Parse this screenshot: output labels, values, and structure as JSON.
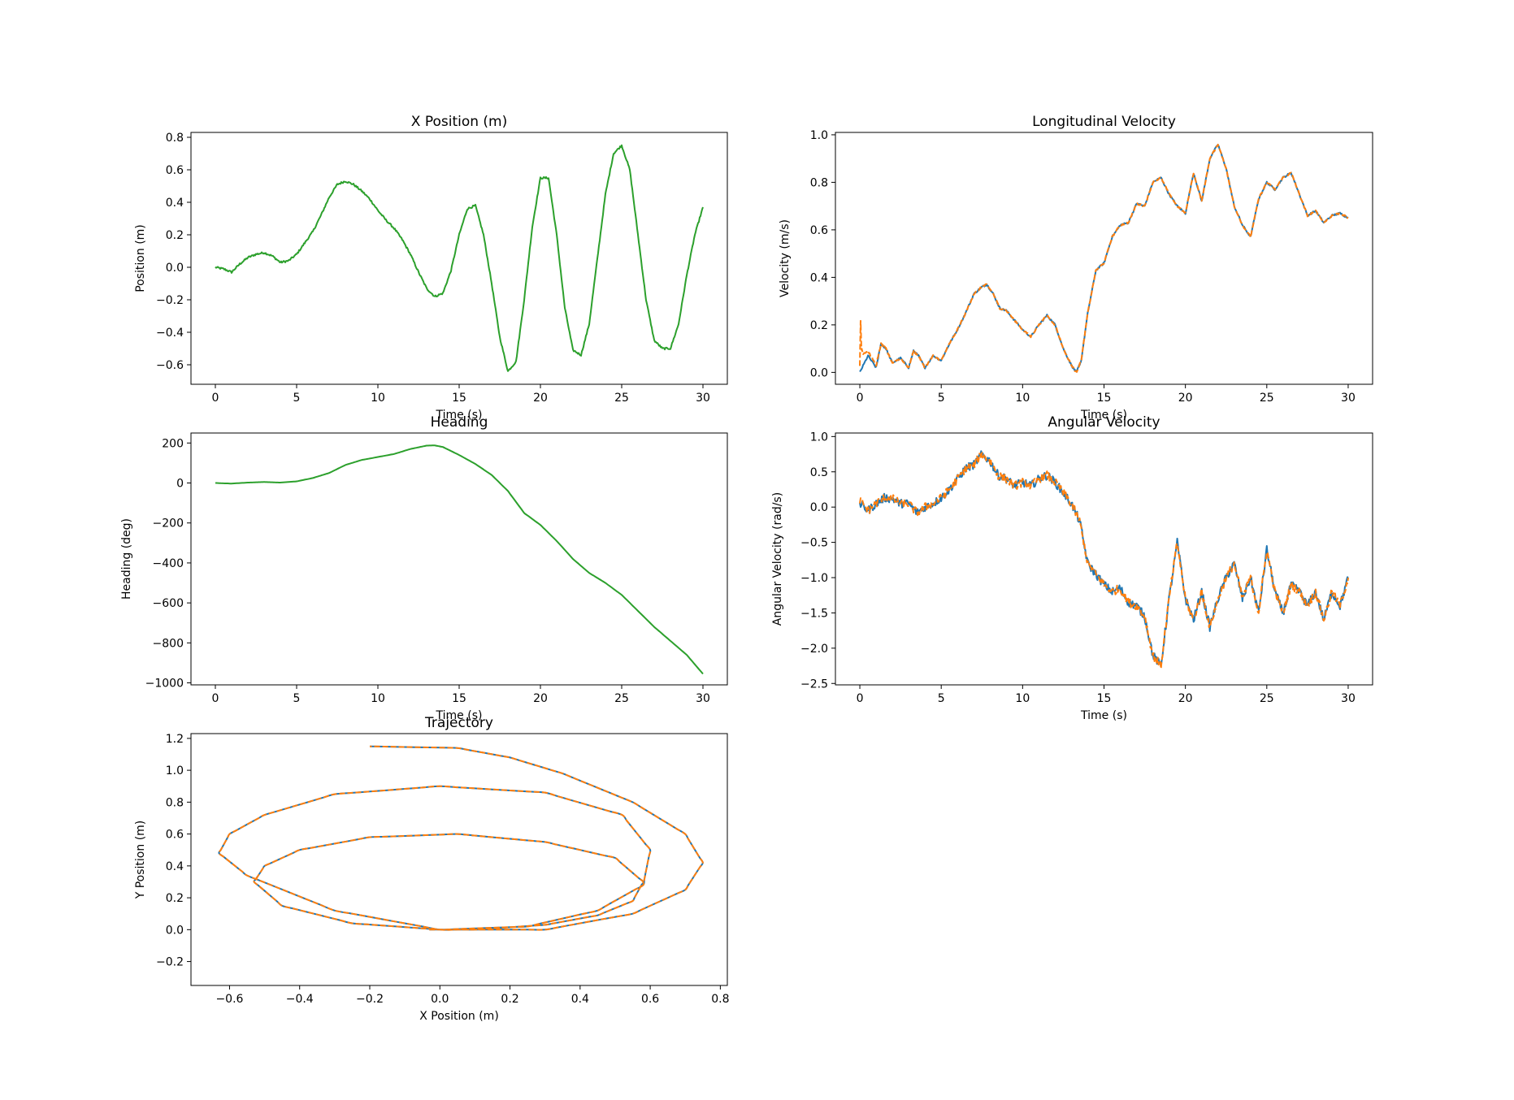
{
  "colors": {
    "blue": "#1f77b4",
    "orange": "#ff7f0e",
    "green": "#2ca02c"
  },
  "chart_data": [
    {
      "id": "xpos",
      "type": "line",
      "title": "X Position (m)",
      "xlabel": "Time (s)",
      "ylabel": "Position (m)",
      "xlim": [
        -1.5,
        31.5
      ],
      "ylim": [
        -0.72,
        0.83
      ],
      "xticks": [
        0,
        5,
        10,
        15,
        20,
        25,
        30
      ],
      "yticks": [
        -0.6,
        -0.4,
        -0.2,
        0.0,
        0.2,
        0.4,
        0.6,
        0.8
      ],
      "ytick_labels": [
        "−0.6",
        "−0.4",
        "−0.2",
        "0.0",
        "0.2",
        "0.4",
        "0.6",
        "0.8"
      ],
      "grid": false,
      "series": [
        {
          "color": "green",
          "dash": false,
          "noise": 0.006,
          "x": [
            0,
            0.5,
            1,
            1.5,
            2,
            2.5,
            3,
            3.5,
            4,
            4.5,
            5,
            5.5,
            6,
            6.5,
            7,
            7.5,
            8,
            8.5,
            9,
            9.5,
            10,
            10.5,
            11,
            11.5,
            12,
            12.5,
            13,
            13.5,
            14,
            14.5,
            15,
            15.5,
            16,
            16.5,
            17,
            17.5,
            18,
            18.5,
            19,
            19.5,
            20,
            20.5,
            21,
            21.5,
            22,
            22.5,
            23,
            23.5,
            24,
            24.5,
            25,
            25.5,
            26,
            26.5,
            27,
            27.5,
            28,
            28.5,
            29,
            29.5,
            30
          ],
          "y": [
            0,
            -0.01,
            -0.03,
            0.02,
            0.06,
            0.08,
            0.09,
            0.07,
            0.03,
            0.04,
            0.08,
            0.15,
            0.22,
            0.32,
            0.43,
            0.51,
            0.53,
            0.51,
            0.47,
            0.42,
            0.35,
            0.29,
            0.24,
            0.17,
            0.08,
            -0.03,
            -0.13,
            -0.18,
            -0.16,
            -0.02,
            0.2,
            0.36,
            0.38,
            0.2,
            -0.1,
            -0.43,
            -0.64,
            -0.58,
            -0.2,
            0.25,
            0.55,
            0.55,
            0.2,
            -0.25,
            -0.51,
            -0.54,
            -0.35,
            0.05,
            0.45,
            0.7,
            0.75,
            0.6,
            0.2,
            -0.2,
            -0.45,
            -0.5,
            -0.5,
            -0.35,
            -0.05,
            0.2,
            0.37
          ]
        }
      ]
    },
    {
      "id": "longvel",
      "type": "line",
      "title": "Longitudinal Velocity",
      "xlabel": "Time (s)",
      "ylabel": "Velocity (m/s)",
      "xlim": [
        -1.5,
        31.5
      ],
      "ylim": [
        -0.05,
        1.01
      ],
      "xticks": [
        0,
        5,
        10,
        15,
        20,
        25,
        30
      ],
      "yticks": [
        0.0,
        0.2,
        0.4,
        0.6,
        0.8,
        1.0
      ],
      "ytick_labels": [
        "0.0",
        "0.2",
        "0.4",
        "0.6",
        "0.8",
        "1.0"
      ],
      "grid": false,
      "series": [
        {
          "color": "blue",
          "dash": false,
          "noise": 0.004,
          "x": [
            0,
            0.5,
            1,
            1.3,
            1.6,
            2,
            2.5,
            3,
            3.3,
            3.6,
            4,
            4.5,
            5,
            5.5,
            6,
            6.5,
            7,
            7.5,
            7.8,
            8.2,
            8.6,
            9,
            9.5,
            10,
            10.5,
            11,
            11.5,
            12,
            12.5,
            13,
            13.3,
            13.6,
            14,
            14.5,
            15,
            15.5,
            16,
            16.5,
            17,
            17.5,
            18,
            18.5,
            19,
            19.5,
            20,
            20.5,
            21,
            21.5,
            22,
            22.5,
            23,
            23.5,
            24,
            24.5,
            25,
            25.5,
            26,
            26.5,
            27,
            27.5,
            28,
            28.5,
            29,
            29.5,
            30
          ],
          "y": [
            0,
            0.07,
            0.02,
            0.12,
            0.1,
            0.04,
            0.06,
            0.02,
            0.09,
            0.07,
            0.02,
            0.07,
            0.05,
            0.12,
            0.18,
            0.25,
            0.33,
            0.36,
            0.37,
            0.33,
            0.27,
            0.26,
            0.22,
            0.18,
            0.15,
            0.2,
            0.24,
            0.2,
            0.1,
            0.03,
            0,
            0.05,
            0.25,
            0.43,
            0.46,
            0.57,
            0.62,
            0.63,
            0.71,
            0.7,
            0.8,
            0.82,
            0.75,
            0.7,
            0.67,
            0.84,
            0.72,
            0.9,
            0.96,
            0.86,
            0.7,
            0.62,
            0.57,
            0.73,
            0.8,
            0.77,
            0.82,
            0.84,
            0.75,
            0.66,
            0.68,
            0.63,
            0.66,
            0.67,
            0.65
          ]
        },
        {
          "color": "orange",
          "dash": true,
          "noise": 0.004,
          "x": [
            0,
            0.05,
            0.1,
            0.2,
            0.5,
            1,
            1.3,
            1.6,
            2,
            2.5,
            3,
            3.3,
            3.6,
            4,
            4.5,
            5,
            5.5,
            6,
            6.5,
            7,
            7.5,
            7.8,
            8.2,
            8.6,
            9,
            9.5,
            10,
            10.5,
            11,
            11.5,
            12,
            12.5,
            13,
            13.3,
            13.6,
            14,
            14.5,
            15,
            15.5,
            16,
            16.5,
            17,
            17.5,
            18,
            18.5,
            19,
            19.5,
            20,
            20.5,
            21,
            21.5,
            22,
            22.5,
            23,
            23.5,
            24,
            24.5,
            25,
            25.5,
            26,
            26.5,
            27,
            27.5,
            28,
            28.5,
            29,
            29.5,
            30
          ],
          "y": [
            0.03,
            0.22,
            0.1,
            0.08,
            0.09,
            0.03,
            0.12,
            0.1,
            0.04,
            0.06,
            0.02,
            0.09,
            0.07,
            0.02,
            0.07,
            0.05,
            0.12,
            0.18,
            0.25,
            0.33,
            0.36,
            0.37,
            0.33,
            0.27,
            0.26,
            0.22,
            0.18,
            0.15,
            0.2,
            0.24,
            0.2,
            0.1,
            0.03,
            0,
            0.05,
            0.25,
            0.43,
            0.46,
            0.57,
            0.62,
            0.63,
            0.71,
            0.7,
            0.8,
            0.82,
            0.75,
            0.7,
            0.67,
            0.84,
            0.72,
            0.9,
            0.96,
            0.86,
            0.7,
            0.62,
            0.57,
            0.73,
            0.8,
            0.77,
            0.82,
            0.84,
            0.75,
            0.66,
            0.68,
            0.63,
            0.66,
            0.67,
            0.65
          ]
        }
      ]
    },
    {
      "id": "heading",
      "type": "line",
      "title": "Heading",
      "xlabel": "Time (s)",
      "ylabel": "Heading (deg)",
      "xlim": [
        -1.5,
        31.5
      ],
      "ylim": [
        -1010,
        250
      ],
      "xticks": [
        0,
        5,
        10,
        15,
        20,
        25,
        30
      ],
      "yticks": [
        -1000,
        -800,
        -600,
        -400,
        -200,
        0,
        200
      ],
      "ytick_labels": [
        "−1000",
        "−800",
        "−600",
        "−400",
        "−200",
        "0",
        "200"
      ],
      "grid": false,
      "series": [
        {
          "color": "green",
          "dash": false,
          "noise": 0,
          "x": [
            0,
            1,
            2,
            3,
            4,
            5,
            6,
            7,
            8,
            9,
            10,
            11,
            12,
            13,
            13.5,
            14,
            15,
            16,
            17,
            18,
            19,
            20,
            21,
            22,
            23,
            24,
            25,
            26,
            27,
            28,
            29,
            30
          ],
          "y": [
            0,
            -3,
            2,
            5,
            2,
            8,
            25,
            50,
            90,
            115,
            130,
            145,
            170,
            187,
            188,
            180,
            140,
            95,
            40,
            -40,
            -150,
            -210,
            -290,
            -380,
            -450,
            -500,
            -560,
            -640,
            -720,
            -790,
            -860,
            -955
          ]
        }
      ]
    },
    {
      "id": "angvel",
      "type": "line",
      "title": "Angular Velocity",
      "xlabel": "Time (s)",
      "ylabel": "Angular Velocity (rad/s)",
      "xlim": [
        -1.5,
        31.5
      ],
      "ylim": [
        -2.52,
        1.05
      ],
      "xticks": [
        0,
        5,
        10,
        15,
        20,
        25,
        30
      ],
      "yticks": [
        -2.5,
        -2.0,
        -1.5,
        -1.0,
        -0.5,
        0.0,
        0.5,
        1.0
      ],
      "ytick_labels": [
        "−2.5",
        "−2.0",
        "−1.5",
        "−1.0",
        "−0.5",
        "0.0",
        "0.5",
        "1.0"
      ],
      "grid": false,
      "series": [
        {
          "color": "blue",
          "dash": false,
          "noise": 0.06,
          "x": [
            0,
            0.5,
            1,
            1.5,
            2,
            2.5,
            3,
            3.5,
            4,
            4.5,
            5,
            5.5,
            6,
            6.5,
            7,
            7.5,
            8,
            8.5,
            9,
            9.5,
            10,
            10.5,
            11,
            11.5,
            12,
            12.5,
            13,
            13.5,
            14,
            14.5,
            15,
            15.5,
            16,
            16.5,
            17,
            17.5,
            18,
            18.5,
            19,
            19.5,
            20,
            20.5,
            21,
            21.5,
            22,
            22.5,
            23,
            23.5,
            24,
            24.5,
            25,
            25.5,
            26,
            26.5,
            27,
            27.5,
            28,
            28.5,
            29,
            29.5,
            30
          ],
          "y": [
            0.05,
            -0.05,
            0.05,
            0.13,
            0.12,
            0.05,
            0.05,
            -0.08,
            0,
            0.05,
            0.13,
            0.25,
            0.4,
            0.55,
            0.6,
            0.75,
            0.65,
            0.45,
            0.4,
            0.3,
            0.35,
            0.3,
            0.4,
            0.45,
            0.35,
            0.2,
            0.05,
            -0.2,
            -0.8,
            -0.95,
            -1.1,
            -1.2,
            -1.15,
            -1.35,
            -1.4,
            -1.55,
            -2.1,
            -2.25,
            -1.3,
            -0.5,
            -1.3,
            -1.6,
            -1.2,
            -1.7,
            -1.3,
            -1.0,
            -0.8,
            -1.3,
            -1.0,
            -1.5,
            -0.6,
            -1.2,
            -1.5,
            -1.1,
            -1.2,
            -1.4,
            -1.2,
            -1.6,
            -1.2,
            -1.4,
            -1.0
          ]
        },
        {
          "color": "orange",
          "dash": true,
          "noise": 0.06,
          "x": [
            0,
            0.5,
            1,
            1.5,
            2,
            2.5,
            3,
            3.5,
            4,
            4.5,
            5,
            5.5,
            6,
            6.5,
            7,
            7.5,
            8,
            8.5,
            9,
            9.5,
            10,
            10.5,
            11,
            11.5,
            12,
            12.5,
            13,
            13.5,
            14,
            14.5,
            15,
            15.5,
            16,
            16.5,
            17,
            17.5,
            18,
            18.5,
            19,
            19.5,
            20,
            20.5,
            21,
            21.5,
            22,
            22.5,
            23,
            23.5,
            24,
            24.5,
            25,
            25.5,
            26,
            26.5,
            27,
            27.5,
            28,
            28.5,
            29,
            29.5,
            30
          ],
          "y": [
            0.1,
            -0.05,
            0.05,
            0.13,
            0.12,
            0.05,
            0.05,
            -0.08,
            0,
            0.05,
            0.13,
            0.25,
            0.4,
            0.55,
            0.6,
            0.75,
            0.65,
            0.45,
            0.4,
            0.3,
            0.35,
            0.3,
            0.4,
            0.45,
            0.35,
            0.2,
            0.05,
            -0.2,
            -0.8,
            -0.95,
            -1.1,
            -1.2,
            -1.15,
            -1.35,
            -1.4,
            -1.55,
            -2.1,
            -2.25,
            -1.3,
            -0.5,
            -1.3,
            -1.6,
            -1.2,
            -1.7,
            -1.3,
            -1.0,
            -0.8,
            -1.3,
            -1.0,
            -1.5,
            -0.6,
            -1.2,
            -1.5,
            -1.1,
            -1.2,
            -1.4,
            -1.2,
            -1.6,
            -1.2,
            -1.4,
            -1.0
          ]
        }
      ]
    },
    {
      "id": "traj",
      "type": "line",
      "title": "Trajectory",
      "xlabel": "X Position (m)",
      "ylabel": "Y Position (m)",
      "xlim": [
        -0.71,
        0.82
      ],
      "ylim": [
        -0.35,
        1.23
      ],
      "xticks": [
        -0.6,
        -0.4,
        -0.2,
        0.0,
        0.2,
        0.4,
        0.6,
        0.8
      ],
      "xtick_labels": [
        "−0.6",
        "−0.4",
        "−0.2",
        "0.0",
        "0.2",
        "0.4",
        "0.6",
        "0.8"
      ],
      "yticks": [
        -0.2,
        0.0,
        0.2,
        0.4,
        0.6,
        0.8,
        1.0,
        1.2
      ],
      "ytick_labels": [
        "−0.2",
        "0.0",
        "0.2",
        "0.4",
        "0.6",
        "0.8",
        "1.0",
        "1.2"
      ],
      "grid": false,
      "series": [
        {
          "color": "blue",
          "dash": false,
          "noise": 0,
          "x": [
            -0.03,
            0.1,
            0.3,
            0.45,
            0.55,
            0.58,
            0.5,
            0.3,
            0.05,
            -0.2,
            -0.4,
            -0.5,
            -0.53,
            -0.45,
            -0.25,
            0.0,
            0.25,
            0.45,
            0.58,
            0.6,
            0.52,
            0.3,
            0.0,
            -0.3,
            -0.5,
            -0.6,
            -0.63,
            -0.55,
            -0.3,
            0.0,
            0.3,
            0.55,
            0.7,
            0.75,
            0.7,
            0.55,
            0.35,
            0.2,
            0.05,
            -0.2
          ],
          "y": [
            0.0,
            0.0,
            0.03,
            0.09,
            0.18,
            0.3,
            0.45,
            0.55,
            0.6,
            0.58,
            0.5,
            0.4,
            0.3,
            0.15,
            0.04,
            0.0,
            0.02,
            0.12,
            0.28,
            0.5,
            0.72,
            0.86,
            0.9,
            0.85,
            0.72,
            0.6,
            0.48,
            0.34,
            0.12,
            0.0,
            0.0,
            0.1,
            0.25,
            0.42,
            0.6,
            0.8,
            0.98,
            1.08,
            1.14,
            1.15
          ]
        },
        {
          "color": "orange",
          "dash": true,
          "noise": 0,
          "x": [
            -0.03,
            0.1,
            0.3,
            0.45,
            0.55,
            0.58,
            0.5,
            0.3,
            0.05,
            -0.2,
            -0.4,
            -0.5,
            -0.53,
            -0.45,
            -0.25,
            0.0,
            0.25,
            0.45,
            0.58,
            0.6,
            0.52,
            0.3,
            0.0,
            -0.3,
            -0.5,
            -0.6,
            -0.63,
            -0.55,
            -0.3,
            0.0,
            0.3,
            0.55,
            0.7,
            0.75,
            0.7,
            0.55,
            0.35,
            0.2,
            0.05,
            -0.2
          ],
          "y": [
            0.0,
            0.0,
            0.03,
            0.09,
            0.18,
            0.3,
            0.45,
            0.55,
            0.6,
            0.58,
            0.5,
            0.4,
            0.3,
            0.15,
            0.04,
            0.0,
            0.02,
            0.12,
            0.28,
            0.5,
            0.72,
            0.86,
            0.9,
            0.85,
            0.72,
            0.6,
            0.48,
            0.34,
            0.12,
            0.0,
            0.0,
            0.1,
            0.25,
            0.42,
            0.6,
            0.8,
            0.98,
            1.08,
            1.14,
            1.15
          ]
        }
      ]
    }
  ]
}
